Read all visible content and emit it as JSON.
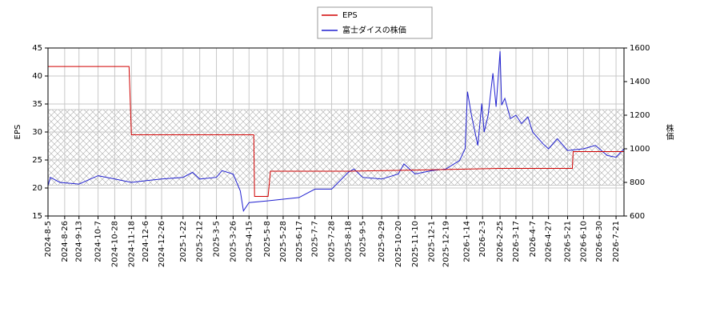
{
  "chart_data": {
    "type": "line",
    "y_label": "EPS",
    "y2_label": "株価",
    "xlim": [
      "2024-8-5",
      "2026-7-31"
    ],
    "xticks": [
      "2024-8-5",
      "2024-8-26",
      "2024-9-13",
      "2024-10-7",
      "2024-10-28",
      "2024-11-18",
      "2024-12-6",
      "2024-12-26",
      "2025-1-22",
      "2025-2-12",
      "2025-3-5",
      "2025-3-26",
      "2025-4-15",
      "2025-5-8",
      "2025-5-28",
      "2025-6-17",
      "2025-7-7",
      "2025-7-28",
      "2025-8-18",
      "2025-9-5",
      "2025-9-29",
      "2025-10-20",
      "2025-11-10",
      "2025-12-1",
      "2025-12-19",
      "2026-1-14",
      "2026-2-3",
      "2026-2-25",
      "2026-3-17",
      "2026-4-7",
      "2026-4-27",
      "2026-5-21",
      "2026-6-10",
      "2026-6-30",
      "2026-7-21"
    ],
    "ylim": [
      15,
      45
    ],
    "yticks": [
      15,
      20,
      25,
      30,
      35,
      40,
      45
    ],
    "y2lim": [
      600,
      1600
    ],
    "y2ticks": [
      600,
      800,
      1000,
      1200,
      1400,
      1600
    ],
    "grid": true,
    "shaded_range": [
      20.5,
      34
    ],
    "legend": "top",
    "series": [
      {
        "name": "EPS",
        "color": "#d00000",
        "x": [
          "2024-8-5",
          "2024-11-15",
          "2024-11-18",
          "2025-4-21",
          "2025-4-22",
          "2025-5-9",
          "2025-5-12",
          "2025-8-18",
          "2025-12-19",
          "2026-2-25",
          "2026-5-27",
          "2026-5-28",
          "2026-7-31"
        ],
        "values": [
          41.7,
          41.7,
          29.5,
          29.5,
          18.5,
          18.5,
          23.0,
          23.0,
          23.3,
          23.5,
          23.5,
          26.5,
          26.5
        ]
      },
      {
        "name": "富士ダイスの株価",
        "color": "#2020d0",
        "axis": "y2",
        "x": [
          "2024-8-5",
          "2024-8-8",
          "2024-8-20",
          "2024-9-13",
          "2024-10-7",
          "2024-10-28",
          "2024-11-18",
          "2024-12-6",
          "2024-12-26",
          "2025-1-22",
          "2025-2-3",
          "2025-2-12",
          "2025-3-5",
          "2025-3-12",
          "2025-3-26",
          "2025-4-4",
          "2025-4-8",
          "2025-4-15",
          "2025-5-8",
          "2025-5-28",
          "2025-6-17",
          "2025-7-7",
          "2025-7-28",
          "2025-8-18",
          "2025-8-25",
          "2025-9-5",
          "2025-9-29",
          "2025-10-20",
          "2025-10-27",
          "2025-11-10",
          "2025-12-1",
          "2025-12-19",
          "2026-1-5",
          "2026-1-12",
          "2026-1-15",
          "2026-1-20",
          "2026-1-28",
          "2026-2-2",
          "2026-2-5",
          "2026-2-10",
          "2026-2-16",
          "2026-2-20",
          "2026-2-25",
          "2026-2-27",
          "2026-3-3",
          "2026-3-10",
          "2026-3-17",
          "2026-3-24",
          "2026-4-1",
          "2026-4-7",
          "2026-4-20",
          "2026-4-27",
          "2026-5-8",
          "2026-5-21",
          "2026-6-10",
          "2026-6-25",
          "2026-7-10",
          "2026-7-21",
          "2026-7-31"
        ],
        "values": [
          780,
          830,
          800,
          790,
          840,
          820,
          800,
          810,
          820,
          830,
          860,
          820,
          830,
          870,
          850,
          750,
          630,
          680,
          690,
          700,
          710,
          760,
          760,
          860,
          880,
          830,
          820,
          850,
          910,
          850,
          870,
          880,
          930,
          1000,
          1340,
          1200,
          1020,
          1270,
          1100,
          1200,
          1450,
          1250,
          1580,
          1260,
          1300,
          1180,
          1200,
          1150,
          1190,
          1100,
          1030,
          1000,
          1060,
          990,
          1000,
          1020,
          960,
          950,
          1000
        ]
      }
    ]
  }
}
